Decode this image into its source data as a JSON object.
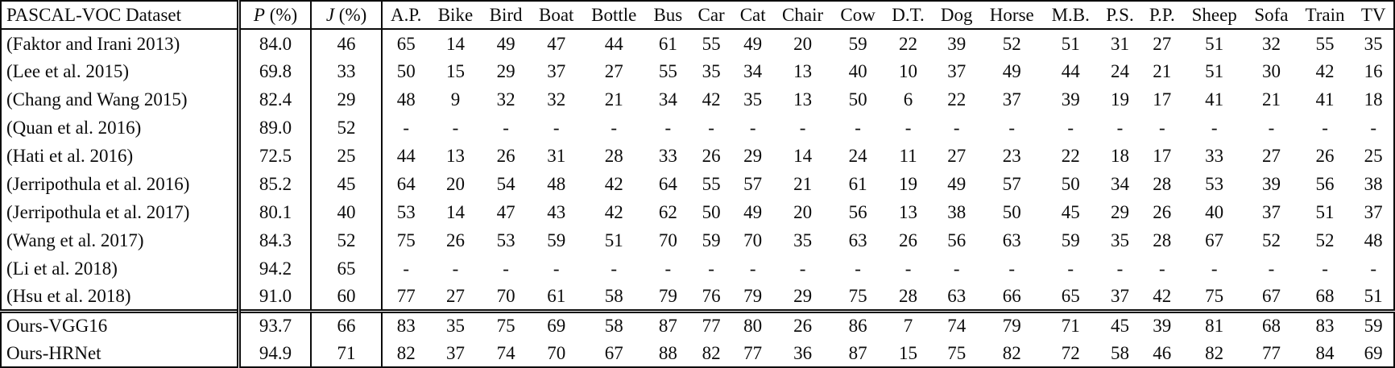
{
  "table": {
    "corner_header": "PASCAL-VOC Dataset",
    "metric_headers": [
      {
        "letter": "P",
        "suffix": " (%)"
      },
      {
        "letter": "J",
        "suffix": " (%)"
      }
    ],
    "category_headers": [
      "A.P.",
      "Bike",
      "Bird",
      "Boat",
      "Bottle",
      "Bus",
      "Car",
      "Cat",
      "Chair",
      "Cow",
      "D.T.",
      "Dog",
      "Horse",
      "M.B.",
      "P.S.",
      "P.P.",
      "Sheep",
      "Sofa",
      "Train",
      "TV"
    ],
    "rows": [
      {
        "method": "(Faktor and Irani 2013)",
        "p": "84.0",
        "j": "46",
        "p_bold": false,
        "j_bold": false,
        "bold": [],
        "group_start": false,
        "values": [
          "65",
          "14",
          "49",
          "47",
          "44",
          "61",
          "55",
          "49",
          "20",
          "59",
          "22",
          "39",
          "52",
          "51",
          "31",
          "27",
          "51",
          "32",
          "55",
          "35"
        ]
      },
      {
        "method": "(Lee et al. 2015)",
        "p": "69.8",
        "j": "33",
        "p_bold": false,
        "j_bold": false,
        "bold": [],
        "group_start": false,
        "values": [
          "50",
          "15",
          "29",
          "37",
          "27",
          "55",
          "35",
          "34",
          "13",
          "40",
          "10",
          "37",
          "49",
          "44",
          "24",
          "21",
          "51",
          "30",
          "42",
          "16"
        ]
      },
      {
        "method": "(Chang and Wang 2015)",
        "p": "82.4",
        "j": "29",
        "p_bold": false,
        "j_bold": false,
        "bold": [],
        "group_start": false,
        "values": [
          "48",
          "9",
          "32",
          "32",
          "21",
          "34",
          "42",
          "35",
          "13",
          "50",
          "6",
          "22",
          "37",
          "39",
          "19",
          "17",
          "41",
          "21",
          "41",
          "18"
        ]
      },
      {
        "method": "(Quan et al. 2016)",
        "p": "89.0",
        "j": "52",
        "p_bold": false,
        "j_bold": false,
        "bold": [],
        "group_start": false,
        "values": [
          "-",
          "-",
          "-",
          "-",
          "-",
          "-",
          "-",
          "-",
          "-",
          "-",
          "-",
          "-",
          "-",
          "-",
          "-",
          "-",
          "-",
          "-",
          "-",
          "-"
        ]
      },
      {
        "method": "(Hati et al. 2016)",
        "p": "72.5",
        "j": "25",
        "p_bold": false,
        "j_bold": false,
        "bold": [],
        "group_start": false,
        "values": [
          "44",
          "13",
          "26",
          "31",
          "28",
          "33",
          "26",
          "29",
          "14",
          "24",
          "11",
          "27",
          "23",
          "22",
          "18",
          "17",
          "33",
          "27",
          "26",
          "25"
        ]
      },
      {
        "method": "(Jerripothula et al. 2016)",
        "p": "85.2",
        "j": "45",
        "p_bold": false,
        "j_bold": false,
        "bold": [],
        "group_start": false,
        "values": [
          "64",
          "20",
          "54",
          "48",
          "42",
          "64",
          "55",
          "57",
          "21",
          "61",
          "19",
          "49",
          "57",
          "50",
          "34",
          "28",
          "53",
          "39",
          "56",
          "38"
        ]
      },
      {
        "method": "(Jerripothula et al. 2017)",
        "p": "80.1",
        "j": "40",
        "p_bold": false,
        "j_bold": false,
        "bold": [],
        "group_start": false,
        "values": [
          "53",
          "14",
          "47",
          "43",
          "42",
          "62",
          "50",
          "49",
          "20",
          "56",
          "13",
          "38",
          "50",
          "45",
          "29",
          "26",
          "40",
          "37",
          "51",
          "37"
        ]
      },
      {
        "method": "(Wang et al. 2017)",
        "p": "84.3",
        "j": "52",
        "p_bold": false,
        "j_bold": false,
        "bold": [],
        "group_start": false,
        "values": [
          "75",
          "26",
          "53",
          "59",
          "51",
          "70",
          "59",
          "70",
          "35",
          "63",
          "26",
          "56",
          "63",
          "59",
          "35",
          "28",
          "67",
          "52",
          "52",
          "48"
        ]
      },
      {
        "method": "(Li et al. 2018)",
        "p": "94.2",
        "j": "65",
        "p_bold": false,
        "j_bold": false,
        "bold": [],
        "group_start": false,
        "values": [
          "-",
          "-",
          "-",
          "-",
          "-",
          "-",
          "-",
          "-",
          "-",
          "-",
          "-",
          "-",
          "-",
          "-",
          "-",
          "-",
          "-",
          "-",
          "-",
          "-"
        ]
      },
      {
        "method": "(Hsu et al. 2018)",
        "p": "91.0",
        "j": "60",
        "p_bold": false,
        "j_bold": false,
        "bold": [
          10
        ],
        "group_start": false,
        "values": [
          "77",
          "27",
          "70",
          "61",
          "58",
          "79",
          "76",
          "79",
          "29",
          "75",
          "28",
          "63",
          "66",
          "65",
          "37",
          "42",
          "75",
          "67",
          "68",
          "51"
        ]
      },
      {
        "method": "Ours-VGG16",
        "p": "93.7",
        "j": "66",
        "p_bold": false,
        "j_bold": false,
        "bold": [
          0,
          2,
          7
        ],
        "group_start": true,
        "values": [
          "83",
          "35",
          "75",
          "69",
          "58",
          "87",
          "77",
          "80",
          "26",
          "86",
          "7",
          "74",
          "79",
          "71",
          "45",
          "39",
          "81",
          "68",
          "83",
          "59"
        ]
      },
      {
        "method": "Ours-HRNet",
        "p": "94.9",
        "j": "71",
        "p_bold": true,
        "j_bold": true,
        "bold": [
          1,
          3,
          4,
          5,
          6,
          8,
          9,
          11,
          12,
          13,
          14,
          15,
          16,
          17,
          18,
          19
        ],
        "group_start": false,
        "values": [
          "82",
          "37",
          "74",
          "70",
          "67",
          "88",
          "82",
          "77",
          "36",
          "87",
          "15",
          "75",
          "82",
          "72",
          "58",
          "46",
          "82",
          "77",
          "84",
          "69"
        ]
      }
    ]
  }
}
